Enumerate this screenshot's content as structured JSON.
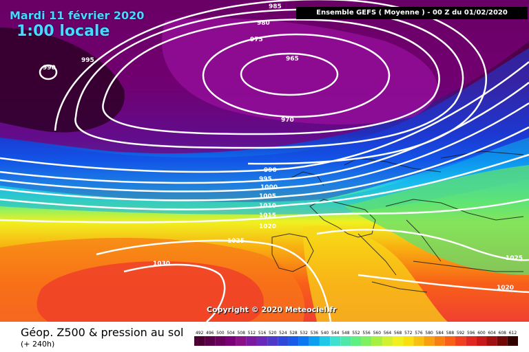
{
  "date_label": "Mardi 11 février 2020",
  "time_label": "1:00 locale",
  "header": "Ensemble GEFS  ( Moyenne )  -  00 Z du 01/02/2020",
  "copyright": "Copyright © 2020 Meteociel.fr",
  "title": "Géop. Z500 & pression au sol",
  "subtitle": "(+ 240h)",
  "isobar_labels": [
    "985",
    "980",
    "975",
    "995",
    "990",
    "965",
    "970",
    "990",
    "995",
    "1000",
    "1005",
    "1010",
    "1015",
    "1020",
    "1025",
    "1030",
    "1025",
    "1020"
  ],
  "legend_values": [
    "492",
    "496",
    "500",
    "504",
    "508",
    "512",
    "516",
    "520",
    "524",
    "528",
    "532",
    "536",
    "540",
    "544",
    "548",
    "552",
    "556",
    "560",
    "564",
    "568",
    "572",
    "576",
    "580",
    "584",
    "588",
    "592",
    "596",
    "600",
    "604",
    "608",
    "612"
  ],
  "legend_colors": [
    "#4a0030",
    "#5a0048",
    "#6a005e",
    "#7a0078",
    "#8a108a",
    "#7a1aa0",
    "#6a28b8",
    "#5038c8",
    "#3048d8",
    "#1a5ae8",
    "#0a78f0",
    "#0aa0f0",
    "#20c8e8",
    "#40e0d0",
    "#50e8a8",
    "#60f080",
    "#80f060",
    "#a8f040",
    "#d0f030",
    "#f0f020",
    "#f8e010",
    "#f8c010",
    "#f8a010",
    "#f88010",
    "#f86018",
    "#f04020",
    "#e02820",
    "#c81818",
    "#a01010",
    "#700808",
    "#300000"
  ]
}
